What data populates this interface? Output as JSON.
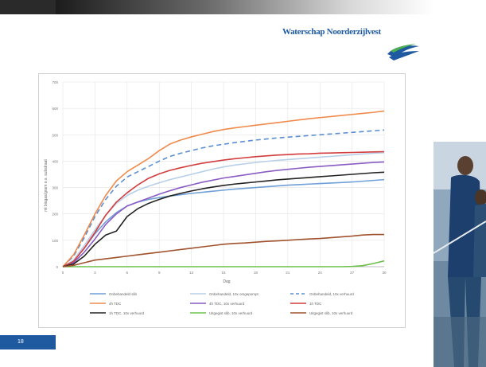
{
  "header": {
    "logo_text": "Waterschap Noorderzijlvest",
    "logo_icon": "waterschap-logo-icon"
  },
  "slide": {
    "page_number": "18"
  },
  "colors": {
    "accent_blue": "#1f5aa0",
    "grid": "#e4e4e4"
  },
  "chart_data": {
    "type": "line",
    "xlabel": "Dag",
    "ylabel": "ml biogas/gram o.s. substraat",
    "xlim": [
      0,
      30
    ],
    "ylim": [
      0,
      700
    ],
    "xticks": [
      0,
      3,
      6,
      9,
      12,
      15,
      18,
      21,
      24,
      27,
      30
    ],
    "yticks": [
      0,
      100,
      200,
      300,
      400,
      500,
      600,
      700
    ],
    "grid": true,
    "legend_position": "bottom",
    "x": [
      0,
      1,
      2,
      3,
      4,
      5,
      6,
      7,
      8,
      9,
      10,
      11,
      12,
      13,
      14,
      15,
      16,
      17,
      18,
      19,
      20,
      21,
      22,
      23,
      24,
      25,
      26,
      27,
      28,
      29,
      30
    ],
    "series": [
      {
        "name": "Onbehandeld slib",
        "color": "#6fa0d8",
        "dash": false,
        "values": [
          0,
          20,
          70,
          125,
          170,
          205,
          230,
          245,
          255,
          262,
          268,
          273,
          278,
          282,
          286,
          290,
          294,
          297,
          300,
          303,
          306,
          309,
          311,
          313,
          315,
          317,
          319,
          321,
          324,
          327,
          330
        ]
      },
      {
        "name": "Onbehandeld, 10x omgepompt",
        "color": "#b8cfe8",
        "dash": false,
        "values": [
          0,
          25,
          80,
          140,
          195,
          240,
          270,
          290,
          305,
          318,
          330,
          340,
          350,
          360,
          370,
          378,
          385,
          390,
          395,
          399,
          403,
          406,
          409,
          412,
          415,
          418,
          421,
          424,
          427,
          430,
          432
        ]
      },
      {
        "name": "Onbehandeld, 10x verhuurd",
        "color": "#5b8fd2",
        "dash": true,
        "values": [
          0,
          40,
          110,
          190,
          255,
          305,
          340,
          360,
          380,
          400,
          418,
          430,
          440,
          450,
          458,
          464,
          470,
          475,
          480,
          484,
          488,
          491,
          494,
          497,
          500,
          503,
          506,
          509,
          512,
          515,
          518
        ]
      },
      {
        "name": "4h TDC",
        "color": "#f08a4b",
        "dash": false,
        "values": [
          0,
          45,
          120,
          200,
          270,
          325,
          360,
          385,
          410,
          440,
          465,
          480,
          492,
          502,
          512,
          520,
          526,
          531,
          536,
          541,
          546,
          551,
          556,
          561,
          565,
          569,
          573,
          577,
          581,
          585,
          590
        ]
      },
      {
        "name": "4h TDC, 10x verhuurd",
        "color": "#8a5cc4",
        "dash": false,
        "values": [
          0,
          15,
          55,
          105,
          160,
          200,
          230,
          245,
          260,
          275,
          288,
          300,
          310,
          320,
          328,
          336,
          342,
          348,
          354,
          360,
          365,
          369,
          373,
          377,
          380,
          383,
          386,
          389,
          392,
          395,
          397
        ]
      },
      {
        "name": "1h TDC",
        "color": "#d23c3c",
        "dash": false,
        "values": [
          0,
          20,
          70,
          130,
          195,
          245,
          280,
          310,
          335,
          352,
          365,
          375,
          384,
          392,
          398,
          404,
          409,
          413,
          417,
          420,
          423,
          425,
          427,
          428,
          430,
          431,
          432,
          433,
          434,
          435,
          436
        ]
      },
      {
        "name": "1h TDC, 10x verhuurd",
        "color": "#222222",
        "dash": false,
        "values": [
          0,
          10,
          40,
          85,
          120,
          135,
          190,
          220,
          240,
          255,
          268,
          278,
          287,
          295,
          302,
          308,
          313,
          317,
          321,
          325,
          329,
          332,
          335,
          338,
          341,
          344,
          347,
          350,
          353,
          356,
          358
        ]
      },
      {
        "name": "Uitgegist slib, 10x verhuurd",
        "color": "#6cc04a",
        "dash": false,
        "values": [
          0,
          0,
          0,
          0,
          0,
          0,
          0,
          0,
          0,
          0,
          0,
          0,
          0,
          0,
          0,
          0,
          0,
          0,
          0,
          0,
          0,
          0,
          0,
          0,
          0,
          0,
          0,
          1,
          4,
          12,
          22
        ]
      },
      {
        "name": "Uitgegist slib, 10x verhuurd",
        "color": "#a0522d",
        "dash": false,
        "values": [
          0,
          5,
          15,
          25,
          30,
          35,
          40,
          45,
          50,
          55,
          60,
          65,
          70,
          75,
          80,
          85,
          88,
          90,
          93,
          96,
          98,
          100,
          103,
          105,
          107,
          110,
          113,
          116,
          120,
          122,
          122
        ]
      }
    ]
  }
}
